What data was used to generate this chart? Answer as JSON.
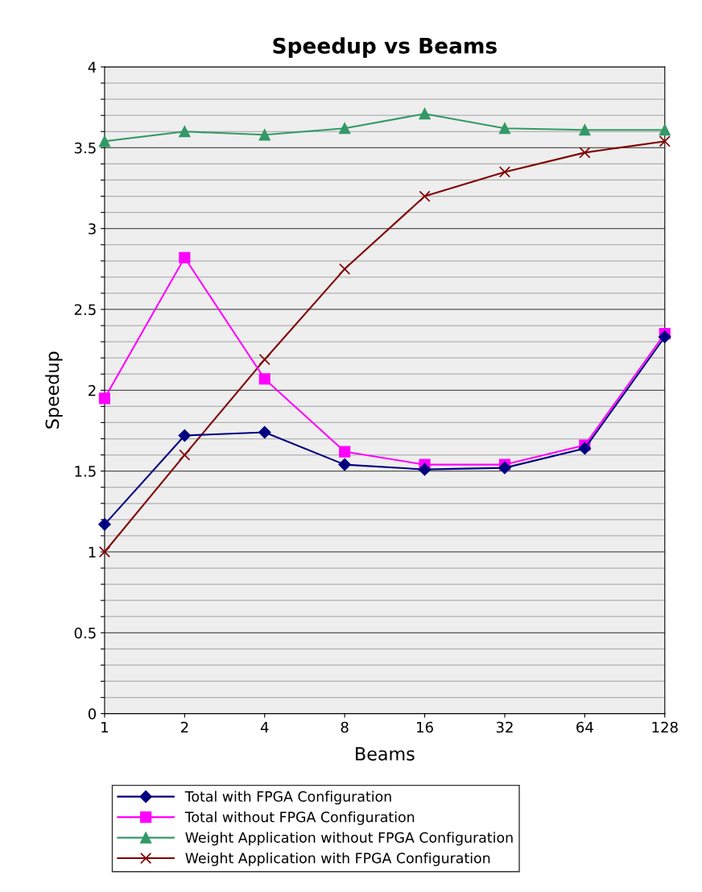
{
  "chart_data": {
    "type": "line",
    "title": "Speedup vs Beams",
    "xlabel": "Beams",
    "ylabel": "Speedup",
    "categories": [
      "1",
      "2",
      "4",
      "8",
      "16",
      "32",
      "64",
      "128"
    ],
    "series": [
      {
        "name": "Total with FPGA Configuration",
        "color": "#000080",
        "marker": "diamond",
        "values": [
          1.17,
          1.72,
          1.74,
          1.54,
          1.51,
          1.52,
          1.64,
          2.33
        ]
      },
      {
        "name": "Total without FPGA Configuration",
        "color": "#ff00ff",
        "marker": "square",
        "values": [
          1.95,
          2.82,
          2.07,
          1.62,
          1.54,
          1.54,
          1.66,
          2.35
        ]
      },
      {
        "name": "Weight Application without FPGA Configuration",
        "color": "#339966",
        "marker": "triangle",
        "values": [
          3.54,
          3.6,
          3.58,
          3.62,
          3.71,
          3.62,
          3.61,
          3.61
        ]
      },
      {
        "name": "Weight Application with FPGA Configuration",
        "color": "#800000",
        "marker": "cross",
        "values": [
          1.0,
          1.6,
          2.19,
          2.75,
          3.2,
          3.35,
          3.47,
          3.54
        ]
      }
    ],
    "ylim": [
      0,
      4
    ],
    "yticks": [
      0,
      {
        "value": 0.1,
        "label": null
      },
      {
        "value": 0.2,
        "label": null
      },
      {
        "value": 0.3,
        "label": null
      },
      {
        "value": 0.4,
        "label": null
      },
      0.5,
      {
        "value": 0.6,
        "label": null
      },
      {
        "value": 0.7,
        "label": null
      },
      {
        "value": 0.8,
        "label": null
      },
      {
        "value": 0.9,
        "label": null
      },
      1,
      {
        "value": 1.1,
        "label": null
      },
      {
        "value": 1.2,
        "label": null
      },
      {
        "value": 1.3,
        "label": null
      },
      {
        "value": 1.4,
        "label": null
      },
      1.5,
      {
        "value": 1.6,
        "label": null
      },
      {
        "value": 1.7,
        "label": null
      },
      {
        "value": 1.8,
        "label": null
      },
      {
        "value": 1.9,
        "label": null
      },
      2,
      {
        "value": 2.1,
        "label": null
      },
      {
        "value": 2.2,
        "label": null
      },
      {
        "value": 2.3,
        "label": null
      },
      {
        "value": 2.4,
        "label": null
      },
      2.5,
      {
        "value": 2.6,
        "label": null
      },
      {
        "value": 2.7,
        "label": null
      },
      {
        "value": 2.8,
        "label": null
      },
      {
        "value": 2.9,
        "label": null
      },
      3,
      {
        "value": 3.1,
        "label": null
      },
      {
        "value": 3.2,
        "label": null
      },
      {
        "value": 3.3,
        "label": null
      },
      {
        "value": 3.4,
        "label": null
      },
      3.5,
      {
        "value": 3.6,
        "label": null
      },
      {
        "value": 3.7,
        "label": null
      },
      {
        "value": 3.8,
        "label": null
      },
      {
        "value": 3.9,
        "label": null
      },
      4
    ],
    "grid": "y",
    "legend": "bottom",
    "line_style": "solid"
  }
}
